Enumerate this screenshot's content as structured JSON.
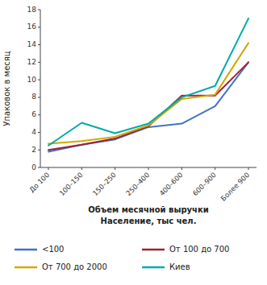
{
  "chart_data": {
    "type": "line",
    "y_label": "Упаковок в месяц",
    "x_label": [
      "Объем месячной выручки",
      "Население, тыс чел."
    ],
    "categories": [
      "До 100",
      "100–150",
      "150–250",
      "250–400",
      "400–600",
      "600–900",
      "Более 900"
    ],
    "series": [
      {
        "name": "<100",
        "color": "#4472C4",
        "values": [
          1.8,
          2.6,
          3.2,
          4.6,
          5.0,
          7.0,
          12.0
        ]
      },
      {
        "name": "От 100 до 700",
        "color": "#9B2335",
        "values": [
          2.0,
          2.6,
          3.3,
          4.7,
          8.2,
          8.2,
          12.0
        ]
      },
      {
        "name": "От 700 до 2000",
        "color": "#D4A800",
        "values": [
          2.7,
          3.0,
          3.5,
          4.8,
          7.8,
          8.3,
          14.2
        ]
      },
      {
        "name": "Киев",
        "color": "#00AAAA",
        "values": [
          2.5,
          5.1,
          3.9,
          5.0,
          8.0,
          9.3,
          17.0
        ]
      }
    ],
    "ylim": [
      0,
      18
    ],
    "yticks": [
      0,
      2,
      4,
      6,
      8,
      10,
      12,
      14,
      16,
      18
    ],
    "grid": false,
    "legend": "bottom"
  }
}
